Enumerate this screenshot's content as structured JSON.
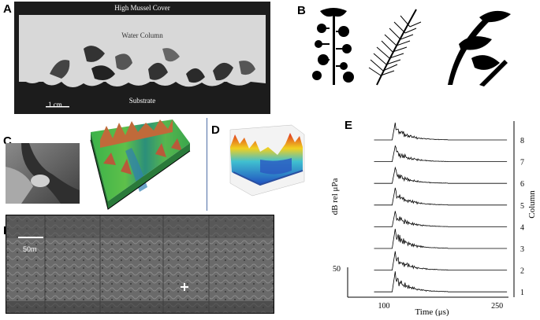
{
  "labels": {
    "a": "A",
    "b": "B",
    "c": "C",
    "d": "D",
    "e": "E",
    "f": "F"
  },
  "panel_a": {
    "top_text": "High Mussel Cover",
    "middle_text": "Water Column",
    "bottom_text": "Substrate",
    "scale_text": "1 cm"
  },
  "panel_e": {
    "ylabel": "dB rel μPa",
    "xlabel": "Time (μs)",
    "right_label": "Column",
    "scale_value": "50",
    "x_ticks": [
      "100",
      "250"
    ],
    "column_numbers": [
      "8",
      "7",
      "6",
      "5",
      "4",
      "3",
      "2",
      "1"
    ]
  },
  "panel_f": {
    "scale_text": "50m"
  },
  "chart_data": {
    "type": "line",
    "title": "",
    "xlabel": "Time (μs)",
    "ylabel": "dB rel μPa",
    "x_ticks": [
      100,
      250
    ],
    "xlim": [
      75,
      265
    ],
    "scale_bar": 50,
    "series": [
      {
        "name": "8",
        "peak_time": 115,
        "peak_height": 22
      },
      {
        "name": "7",
        "peak_time": 115,
        "peak_height": 20
      },
      {
        "name": "6",
        "peak_time": 115,
        "peak_height": 20
      },
      {
        "name": "5",
        "peak_time": 115,
        "peak_height": 22
      },
      {
        "name": "4",
        "peak_time": 115,
        "peak_height": 20
      },
      {
        "name": "3",
        "peak_time": 115,
        "peak_height": 25
      },
      {
        "name": "2",
        "peak_time": 115,
        "peak_height": 24
      },
      {
        "name": "1",
        "peak_time": 115,
        "peak_height": 26
      }
    ]
  }
}
